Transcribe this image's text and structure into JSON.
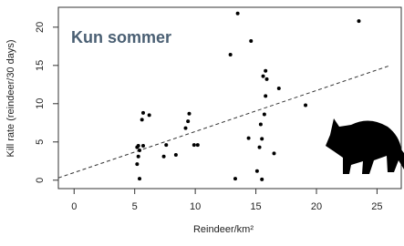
{
  "chart_data": {
    "type": "scatter",
    "annotation": "Kun sommer",
    "xlabel": "Reindeer/km²",
    "ylabel": "Kill rate (reindeer/30 days)",
    "x": [
      5.3,
      5.2,
      5.4,
      5.3,
      5.2,
      5.4,
      5.6,
      5.7,
      6.2,
      5.7,
      7.6,
      7.4,
      8.4,
      9.2,
      9.4,
      9.5,
      9.9,
      10.2,
      12.9,
      13.5,
      14.6,
      13.3,
      14.4,
      15.1,
      15.3,
      15.5,
      15.4,
      15.7,
      15.8,
      15.9,
      15.8,
      15.6,
      16.9,
      16.5,
      15.5,
      19.1,
      23.5
    ],
    "values": [
      4.5,
      4.3,
      3.9,
      3.1,
      2.1,
      0.2,
      7.9,
      8.8,
      8.5,
      4.5,
      4.6,
      3.1,
      3.3,
      6.8,
      7.7,
      8.7,
      4.6,
      4.6,
      16.4,
      21.8,
      18.2,
      0.2,
      5.5,
      1.2,
      4.3,
      5.4,
      7.3,
      8.6,
      11.0,
      13.2,
      14.3,
      13.6,
      12.0,
      3.5,
      0.1,
      9.8,
      20.8
    ],
    "color": "#000000",
    "trend_line": {
      "x": [
        -1.3,
        26.1
      ],
      "values": [
        0.3,
        15.0
      ],
      "color": "#333333"
    },
    "xlim": [
      -1.3,
      27.0
    ],
    "ylim": [
      -1.1,
      22.6
    ],
    "xticks": [
      0,
      5,
      10,
      15,
      20,
      25
    ],
    "yticks": [
      0,
      5,
      10,
      15,
      20
    ]
  }
}
